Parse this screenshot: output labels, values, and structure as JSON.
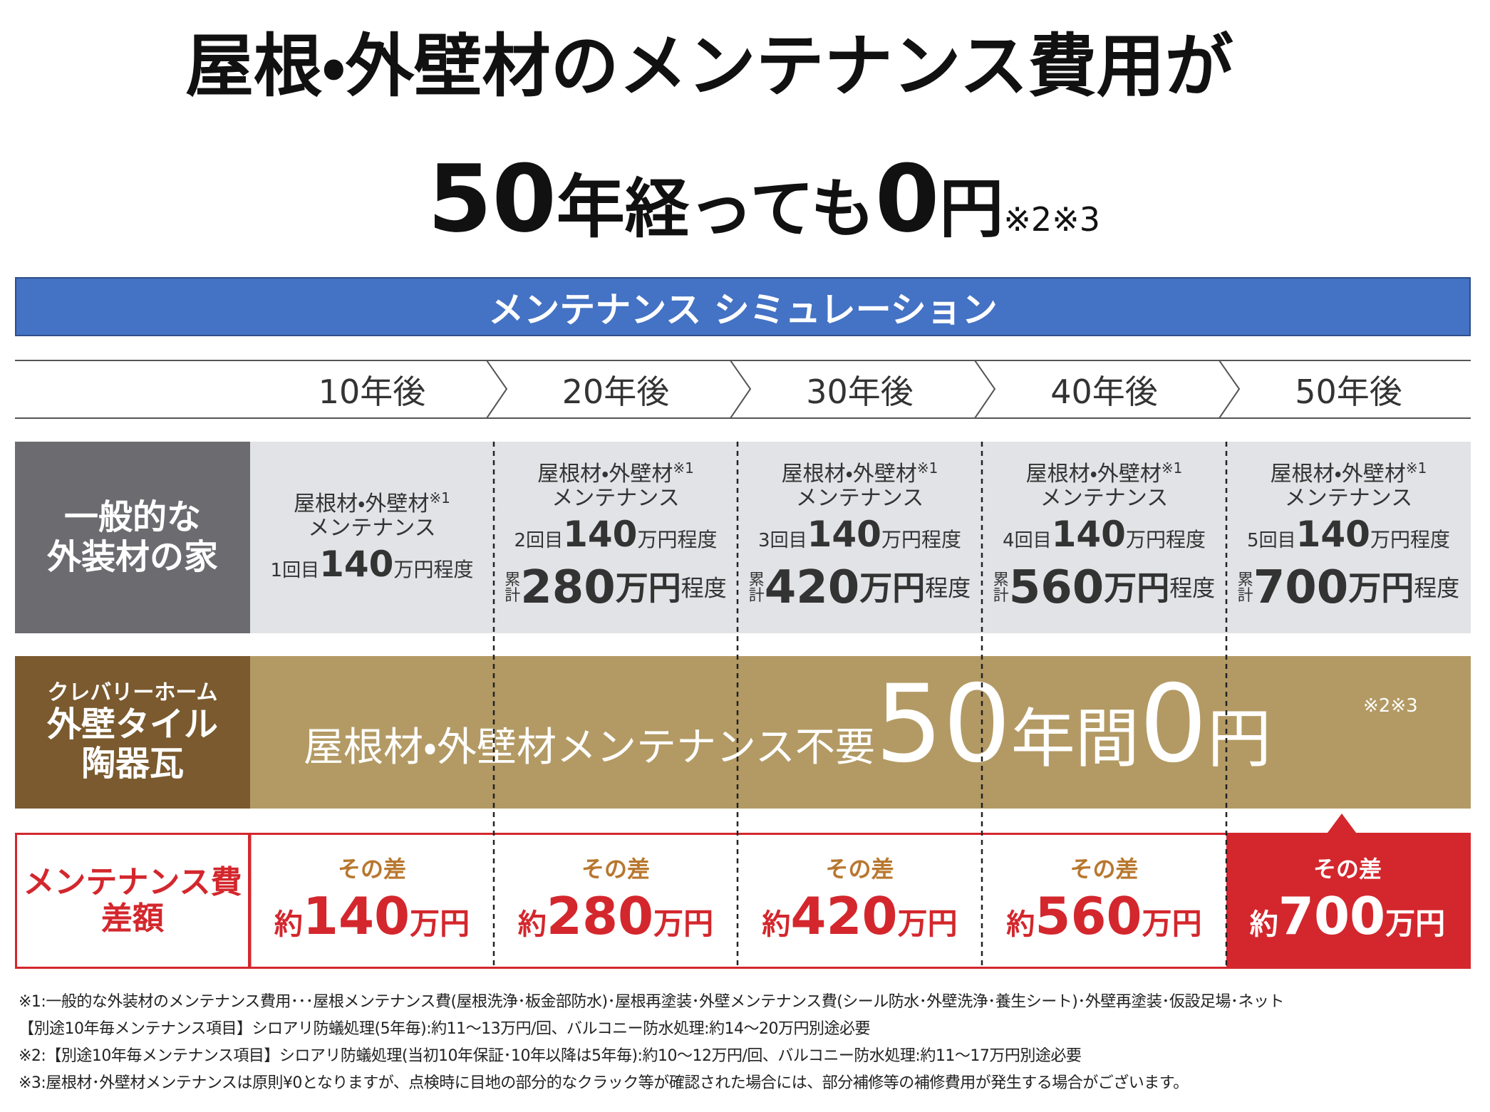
{
  "title": {
    "line1": "屋根・外壁材のメンテナンス費用が",
    "line2": {
      "number": "50",
      "year": "年",
      "text": "経っても",
      "zero": "0",
      "yen": "円",
      "note": "※2※3"
    }
  },
  "banner": "メンテナンス シミュレーション",
  "periods": [
    "10年後",
    "20年後",
    "30年後",
    "40年後",
    "50年後"
  ],
  "general": {
    "header": [
      "一般的な",
      "外装材の家"
    ],
    "cells": [
      {
        "item": "屋根材・外壁材",
        "note": "※1",
        "work": "メンテナンス",
        "count": "1回目",
        "amount": "140",
        "unit": "万円程度"
      },
      {
        "item": "屋根材・外壁材",
        "note": "※1",
        "work": "メンテナンス",
        "count": "2回目",
        "amount": "140",
        "unit": "万円程度",
        "total_label": "累計",
        "total": "280",
        "total_unit": "万円",
        "total_suffix": "程度"
      },
      {
        "item": "屋根材・外壁材",
        "note": "※1",
        "work": "メンテナンス",
        "count": "3回目",
        "amount": "140",
        "unit": "万円程度",
        "total_label": "累計",
        "total": "420",
        "total_unit": "万円",
        "total_suffix": "程度"
      },
      {
        "item": "屋根材・外壁材",
        "note": "※1",
        "work": "メンテナンス",
        "count": "4回目",
        "amount": "140",
        "unit": "万円程度",
        "total_label": "累計",
        "total": "560",
        "total_unit": "万円",
        "total_suffix": "程度"
      },
      {
        "item": "屋根材・外壁材",
        "note": "※1",
        "work": "メンテナンス",
        "count": "5回目",
        "amount": "140",
        "unit": "万円程度",
        "total_label": "累計",
        "total": "700",
        "total_unit": "万円",
        "total_suffix": "程度"
      }
    ]
  },
  "clever": {
    "header": [
      "クレバリーホーム",
      "外壁タイル",
      "陶器瓦"
    ],
    "text": "屋根材・外壁材メンテナンス不要",
    "years": "50",
    "years_unit": "年間",
    "amount": "0",
    "unit": "円",
    "note": "※2※3"
  },
  "difference": {
    "header": [
      "メンテナンス費",
      "差額"
    ],
    "cells": [
      {
        "label": "その差",
        "prefix": "約",
        "amount": "140",
        "unit": "万円"
      },
      {
        "label": "その差",
        "prefix": "約",
        "amount": "280",
        "unit": "万円"
      },
      {
        "label": "その差",
        "prefix": "約",
        "amount": "420",
        "unit": "万円"
      },
      {
        "label": "その差",
        "prefix": "約",
        "amount": "560",
        "unit": "万円"
      },
      {
        "label": "その差",
        "prefix": "約",
        "amount": "700",
        "unit": "万円"
      }
    ]
  },
  "footnotes": [
    "※1:一般的な外装材のメンテナンス費用･･･屋根メンテナンス費(屋根洗浄･板金部防水)･屋根再塗装･外壁メンテナンス費(シール防水･外壁洗浄･養生シート)･外壁再塗装･仮設足場･ネット",
    "【別途10年毎メンテナンス項目】シロアリ防蟻処理(5年毎):約11～13万円/回、バルコニー防水処理:約14～20万円別途必要",
    "※2:【別途10年毎メンテナンス項目】シロアリ防蟻処理(当初10年保証･10年以降は5年毎):約10～12万円/回、バルコニー防水処理:約11～17万円別途必要",
    "※3:屋根材･外壁材メンテナンスは原則¥0となりますが、点検時に目地の部分的なクラック等が確認された場合には、部分補修等の補修費用が発生する場合がございます。"
  ]
}
